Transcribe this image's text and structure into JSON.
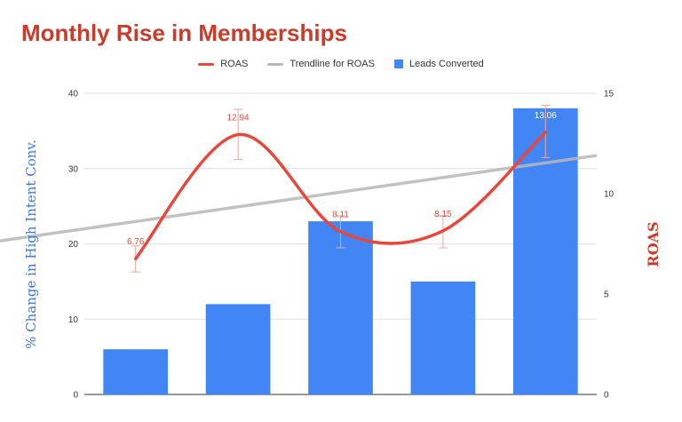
{
  "chart_data": {
    "type": "bar+line",
    "title": "Monthly Rise in Memberships",
    "legend_position": "top",
    "grid": true,
    "y_left": {
      "label": "% Change in High Intent Conv.",
      "range": [
        0,
        40
      ],
      "ticks": [
        "0",
        "10",
        "20",
        "30",
        "40"
      ]
    },
    "y_right": {
      "label": "ROAS",
      "range": [
        0,
        15
      ],
      "ticks": [
        "0",
        "5",
        "10",
        "15"
      ]
    },
    "categories": [
      "",
      "",
      "",
      "",
      ""
    ],
    "series": [
      {
        "name": "Leads Converted",
        "kind": "bar",
        "axis": "left",
        "color": "#4285f4",
        "values": [
          6,
          12,
          23,
          15,
          38
        ]
      },
      {
        "name": "ROAS",
        "kind": "smooth-line",
        "axis": "right",
        "color": "#e8473a",
        "values": [
          6.76,
          12.94,
          8.11,
          8.15,
          13.06
        ],
        "labels": [
          "6.76",
          "12.94",
          "8.11",
          "8.15",
          "13.06"
        ],
        "error_bars": [
          [
            6.1,
            7.4
          ],
          [
            11.7,
            14.2
          ],
          [
            7.3,
            8.9
          ],
          [
            7.3,
            8.9
          ],
          [
            11.8,
            14.4
          ]
        ]
      },
      {
        "name": "Trendline for ROAS",
        "kind": "trendline",
        "axis": "right",
        "color": "#b7b7b7",
        "start": 7.65,
        "end": 11.9
      }
    ]
  },
  "colors": {
    "title": "#cc3b2a",
    "grid": "#e0e0e0",
    "axis": "#333333",
    "error_bar": "#f3a49c"
  }
}
